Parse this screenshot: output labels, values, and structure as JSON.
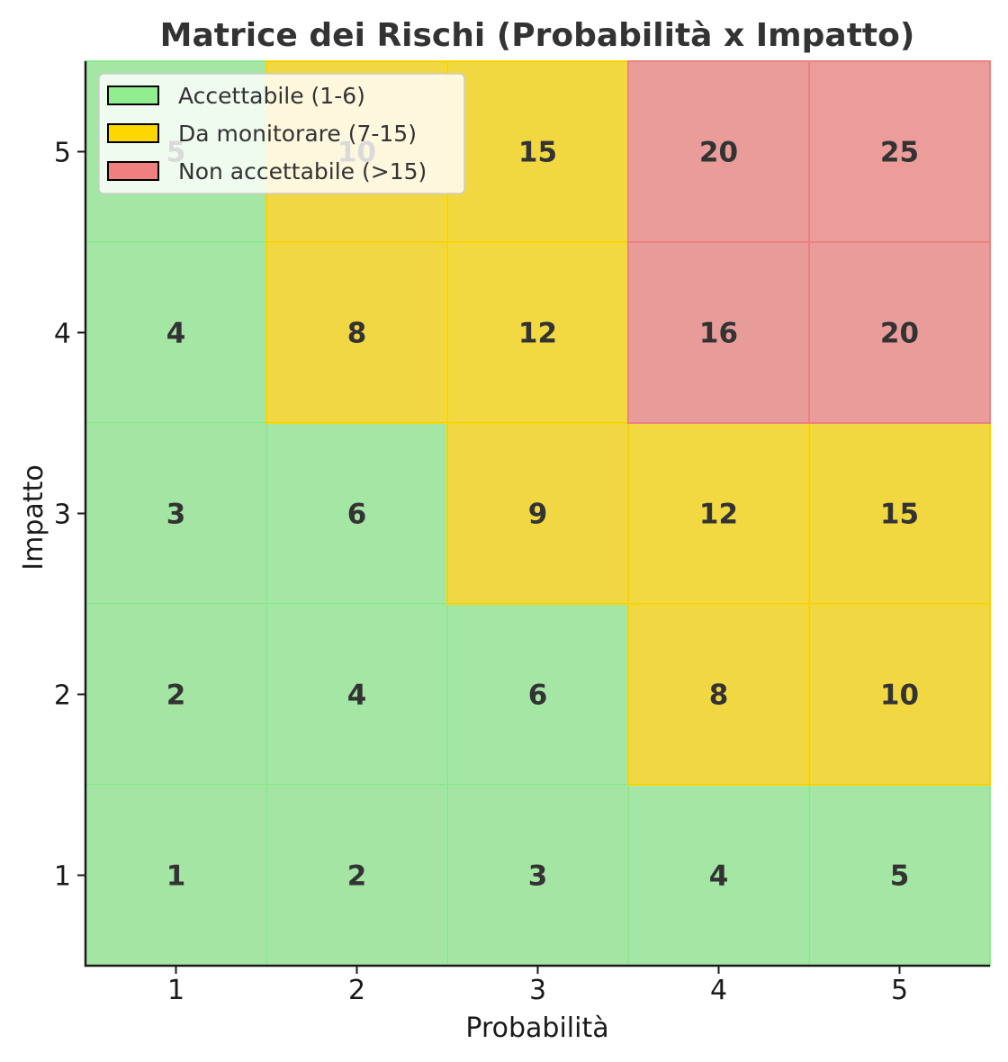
{
  "chart_data": {
    "type": "heatmap",
    "title": "Matrice dei Rischi (Probabilità x Impatto)",
    "xlabel": "Probabilità",
    "ylabel": "Impatto",
    "x": [
      1,
      2,
      3,
      4,
      5
    ],
    "y": [
      1,
      2,
      3,
      4,
      5
    ],
    "xlim": [
      0.5,
      5.5
    ],
    "ylim": [
      0.5,
      5.5
    ],
    "grid": false,
    "legend_position": "top-left",
    "values": [
      [
        1,
        2,
        3,
        4,
        5
      ],
      [
        2,
        4,
        6,
        8,
        10
      ],
      [
        3,
        6,
        9,
        12,
        15
      ],
      [
        4,
        8,
        12,
        16,
        20
      ],
      [
        5,
        10,
        15,
        20,
        25
      ]
    ],
    "categories_legend": [
      {
        "label": "Accettabile (1-6)",
        "color": "#90ee90",
        "min": 1,
        "max": 6
      },
      {
        "label": "Da monitorare (7-15)",
        "color": "#ffd700",
        "min": 7,
        "max": 15
      },
      {
        "label": "Non accettabile (>15)",
        "color": "#f08080",
        "min": 16,
        "max": 25
      }
    ]
  }
}
